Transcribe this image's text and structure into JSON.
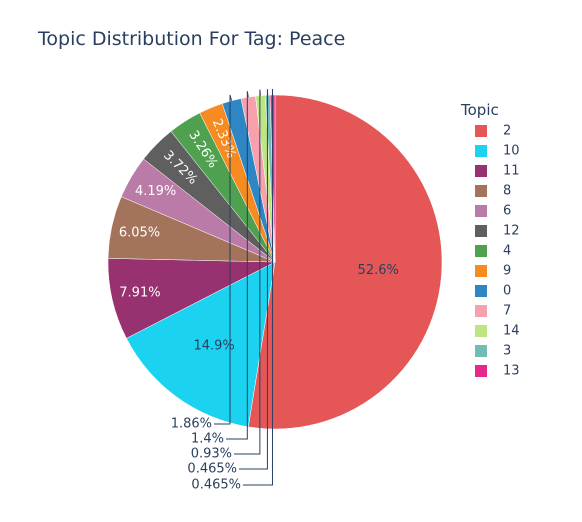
{
  "chart_data": {
    "type": "pie",
    "title": "Topic Distribution For Tag: Peace",
    "legend_title": "Topic",
    "legend_position": "right",
    "labels": [
      "2",
      "10",
      "11",
      "8",
      "6",
      "12",
      "4",
      "9",
      "0",
      "7",
      "14",
      "3",
      "13"
    ],
    "values": [
      52.6,
      14.9,
      7.91,
      6.05,
      4.19,
      3.72,
      3.26,
      2.33,
      1.86,
      1.4,
      0.93,
      0.465,
      0.465
    ],
    "text_labels": [
      "52.6%",
      "14.9%",
      "7.91%",
      "6.05%",
      "4.19%",
      "3.72%",
      "3.26%",
      "2.33%",
      "1.86%",
      "1.4%",
      "0.93%",
      "0.465%",
      "0.465%"
    ],
    "colors": [
      "#E45756",
      "#1BD3F0",
      "#97316F",
      "#A3735B",
      "#BA7BA8",
      "#5F5F5F",
      "#4FA14F",
      "#F58B21",
      "#2E87C4",
      "#F7A0AE",
      "#BDE683",
      "#72BBB6",
      "#E7288A"
    ]
  }
}
